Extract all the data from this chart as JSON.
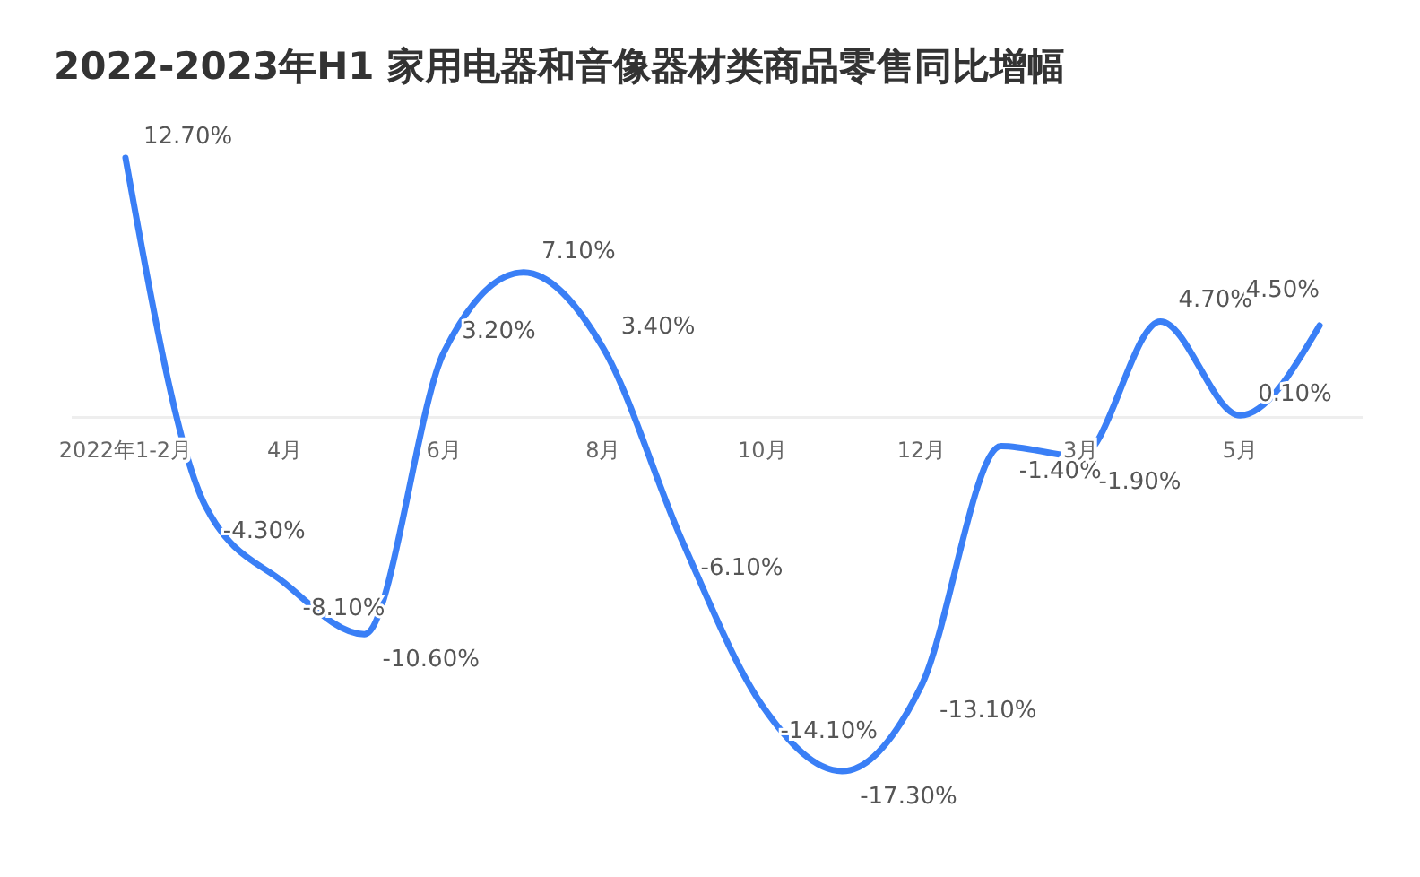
{
  "chart_data": {
    "type": "line",
    "title": "2022-2023年H1 家用电器和音像器材类商品零售同比增幅",
    "categories": [
      "2022年1-2月",
      null,
      "4月",
      null,
      "6月",
      null,
      "8月",
      null,
      "10月",
      null,
      "12月",
      null,
      "3月",
      null,
      "5月",
      null
    ],
    "series": [
      {
        "color": "#3a7ff6",
        "values": [
          12.7,
          -4.3,
          -8.1,
          -10.6,
          3.2,
          7.1,
          3.4,
          -6.1,
          -14.1,
          -17.3,
          -13.1,
          -1.4,
          -1.9,
          4.7,
          0.1,
          4.5
        ],
        "value_labels": [
          "12.70%",
          "-4.30%",
          "-8.10%",
          "-10.60%",
          "3.20%",
          "7.10%",
          "3.40%",
          "-6.10%",
          "-14.10%",
          "-17.30%",
          "-13.10%",
          "-1.40%",
          "-1.90%",
          "4.70%",
          "0.10%",
          "4.50%"
        ]
      }
    ],
    "marker": "none",
    "line_style": "solid"
  }
}
